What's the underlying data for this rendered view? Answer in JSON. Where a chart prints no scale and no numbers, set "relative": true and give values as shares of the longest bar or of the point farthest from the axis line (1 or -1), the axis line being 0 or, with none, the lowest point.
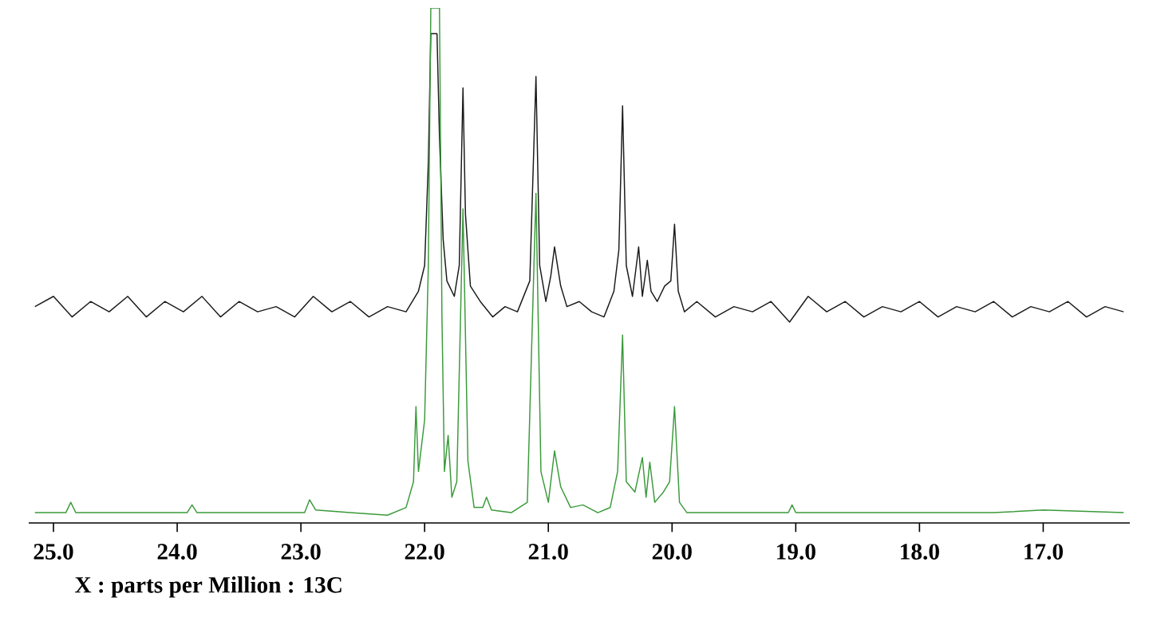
{
  "chart_data": {
    "type": "line",
    "relative": true,
    "xlabel": "X : parts per Million : 13C",
    "xlim": [
      25.2,
      16.3
    ],
    "xticks": [
      {
        "value": 25,
        "label": "25.0"
      },
      {
        "value": 24,
        "label": "24.0"
      },
      {
        "value": 23,
        "label": "23.0"
      },
      {
        "value": 22,
        "label": "22.0"
      },
      {
        "value": 21,
        "label": "21.0"
      },
      {
        "value": 20,
        "label": "20.0"
      },
      {
        "value": 19,
        "label": "19.0"
      },
      {
        "value": 18,
        "label": "18.0"
      },
      {
        "value": 17,
        "label": "17.0"
      }
    ],
    "tick_labels": "x",
    "marker": "none",
    "line_style": "solid",
    "series": [
      {
        "color": "#1a1a1a",
        "x": [
          25.15,
          25.0,
          24.85,
          24.7,
          24.55,
          24.4,
          24.25,
          24.1,
          23.95,
          23.8,
          23.65,
          23.5,
          23.35,
          23.2,
          23.05,
          22.9,
          22.75,
          22.6,
          22.45,
          22.3,
          22.15,
          22.05,
          22.0,
          21.97,
          21.95,
          21.9,
          21.88,
          21.85,
          21.82,
          21.76,
          21.72,
          21.69,
          21.67,
          21.63,
          21.55,
          21.45,
          21.35,
          21.25,
          21.15,
          21.1,
          21.07,
          21.02,
          20.98,
          20.95,
          20.9,
          20.85,
          20.75,
          20.65,
          20.55,
          20.47,
          20.43,
          20.4,
          20.37,
          20.32,
          20.27,
          20.24,
          20.2,
          20.17,
          20.12,
          20.06,
          20.01,
          19.98,
          19.95,
          19.9,
          19.8,
          19.65,
          19.5,
          19.35,
          19.2,
          19.05,
          18.9,
          18.75,
          18.6,
          18.45,
          18.3,
          18.15,
          18.0,
          17.85,
          17.7,
          17.55,
          17.4,
          17.25,
          17.1,
          16.95,
          16.8,
          16.65,
          16.5,
          16.35
        ],
        "values": [
          0.42,
          0.44,
          0.4,
          0.43,
          0.41,
          0.44,
          0.4,
          0.43,
          0.41,
          0.44,
          0.4,
          0.43,
          0.41,
          0.42,
          0.4,
          0.44,
          0.41,
          0.43,
          0.4,
          0.42,
          0.41,
          0.45,
          0.5,
          0.7,
          0.95,
          0.95,
          0.75,
          0.55,
          0.47,
          0.44,
          0.5,
          0.845,
          0.6,
          0.46,
          0.43,
          0.4,
          0.42,
          0.41,
          0.47,
          0.867,
          0.5,
          0.43,
          0.48,
          0.536,
          0.46,
          0.42,
          0.43,
          0.41,
          0.4,
          0.45,
          0.53,
          0.81,
          0.5,
          0.44,
          0.536,
          0.44,
          0.51,
          0.45,
          0.43,
          0.46,
          0.47,
          0.58,
          0.45,
          0.41,
          0.43,
          0.4,
          0.42,
          0.41,
          0.43,
          0.39,
          0.44,
          0.41,
          0.43,
          0.4,
          0.42,
          0.41,
          0.43,
          0.4,
          0.42,
          0.41,
          0.43,
          0.4,
          0.42,
          0.41,
          0.43,
          0.4,
          0.42,
          0.41
        ]
      },
      {
        "color": "#3a9a3a",
        "x": [
          25.15,
          24.9,
          24.86,
          24.82,
          24.4,
          23.92,
          23.88,
          23.84,
          23.4,
          22.97,
          22.93,
          22.88,
          22.6,
          22.3,
          22.15,
          22.09,
          22.07,
          22.05,
          22.0,
          21.97,
          21.95,
          21.88,
          21.86,
          21.84,
          21.81,
          21.78,
          21.74,
          21.69,
          21.65,
          21.6,
          21.53,
          21.5,
          21.46,
          21.3,
          21.17,
          21.1,
          21.06,
          21.0,
          20.95,
          20.9,
          20.82,
          20.72,
          20.6,
          20.5,
          20.44,
          20.4,
          20.37,
          20.3,
          20.24,
          20.21,
          20.18,
          20.14,
          20.07,
          20.02,
          19.98,
          19.94,
          19.88,
          19.5,
          19.06,
          19.03,
          19.0,
          18.5,
          18.0,
          17.4,
          17.0,
          16.35
        ],
        "values": [
          0.02,
          0.02,
          0.04,
          0.02,
          0.02,
          0.02,
          0.035,
          0.02,
          0.02,
          0.02,
          0.045,
          0.025,
          0.02,
          0.015,
          0.03,
          0.08,
          0.226,
          0.1,
          0.2,
          0.5,
          1,
          1,
          0.4,
          0.1,
          0.17,
          0.05,
          0.08,
          0.61,
          0.12,
          0.03,
          0.03,
          0.05,
          0.025,
          0.02,
          0.04,
          0.64,
          0.1,
          0.04,
          0.14,
          0.07,
          0.03,
          0.035,
          0.02,
          0.03,
          0.1,
          0.365,
          0.08,
          0.06,
          0.127,
          0.05,
          0.118,
          0.04,
          0.06,
          0.08,
          0.226,
          0.04,
          0.02,
          0.02,
          0.02,
          0.035,
          0.02,
          0.02,
          0.02,
          0.02,
          0.025,
          0.02
        ]
      }
    ]
  }
}
